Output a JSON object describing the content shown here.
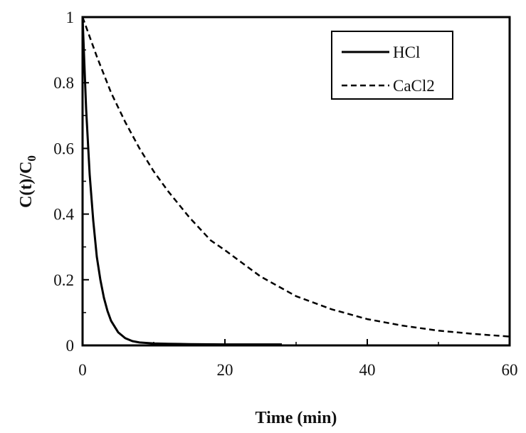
{
  "chart_data": {
    "type": "line",
    "xlabel": "Time (min)",
    "ylabel": {
      "main": "C(t)/C",
      "subscript": "0"
    },
    "xlim": [
      0,
      60
    ],
    "ylim": [
      0,
      1
    ],
    "x_ticks": [
      "0",
      "20",
      "40",
      "60"
    ],
    "y_ticks": [
      "0",
      "0.2",
      "0.4",
      "0.6",
      "0.8",
      "1"
    ],
    "grid": false,
    "legend_position": "top-right",
    "series": [
      {
        "name": "HCl",
        "style": "solid",
        "x": [
          0,
          0.5,
          1,
          1.5,
          2,
          2.5,
          3,
          3.5,
          4,
          5,
          6,
          7,
          8,
          10,
          12,
          15,
          20,
          25,
          28
        ],
        "y": [
          1.0,
          0.72,
          0.52,
          0.38,
          0.27,
          0.2,
          0.145,
          0.105,
          0.075,
          0.04,
          0.022,
          0.013,
          0.009,
          0.006,
          0.005,
          0.004,
          0.003,
          0.003,
          0.003
        ]
      },
      {
        "name": "CaCl2",
        "style": "dashed",
        "x": [
          0,
          2,
          4,
          6,
          8,
          10,
          12,
          15,
          18,
          20,
          25,
          30,
          35,
          40,
          45,
          50,
          55,
          60
        ],
        "y": [
          1.0,
          0.88,
          0.77,
          0.68,
          0.6,
          0.53,
          0.47,
          0.39,
          0.32,
          0.29,
          0.21,
          0.15,
          0.11,
          0.08,
          0.06,
          0.045,
          0.035,
          0.027
        ]
      }
    ]
  }
}
